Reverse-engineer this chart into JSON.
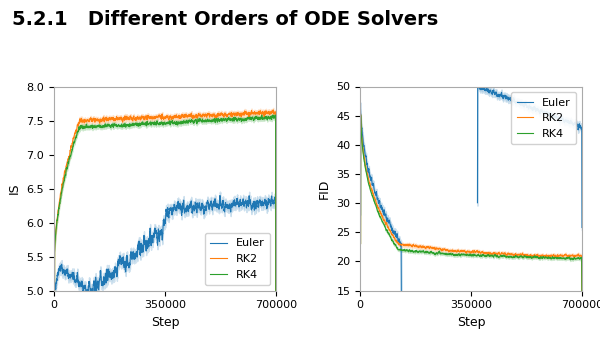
{
  "title": "5.2.1   Different Orders of ODE Solvers",
  "title_fontsize": 14,
  "title_fontweight": "bold",
  "left_plot": {
    "ylabel": "IS",
    "xlabel": "Step",
    "xlim": [
      0,
      700000
    ],
    "ylim": [
      5.0,
      8.0
    ],
    "xticks": [
      0,
      350000,
      700000
    ],
    "yticks": [
      5.0,
      5.5,
      6.0,
      6.5,
      7.0,
      7.5,
      8.0
    ]
  },
  "right_plot": {
    "ylabel": "FID",
    "xlabel": "Step",
    "xlim": [
      0,
      700000
    ],
    "ylim": [
      15,
      50
    ],
    "xticks": [
      0,
      350000,
      700000
    ],
    "yticks": [
      15,
      20,
      25,
      30,
      35,
      40,
      45,
      50
    ]
  },
  "euler_color": "#1f77b4",
  "rk2_color": "#ff7f0e",
  "rk4_color": "#2ca02c",
  "background_color": "#ffffff"
}
